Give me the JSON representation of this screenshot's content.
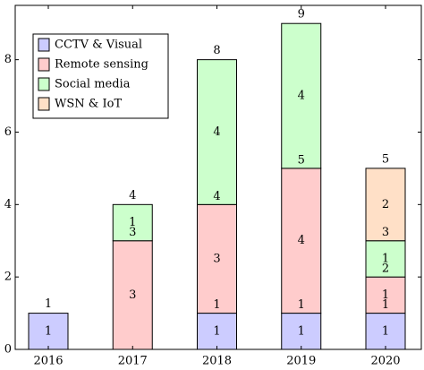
{
  "chart_data": {
    "type": "bar",
    "stacked": true,
    "categories": [
      "2016",
      "2017",
      "2018",
      "2019",
      "2020"
    ],
    "series": [
      {
        "name": "CCTV & Visual",
        "color": "#ccccff",
        "values": [
          1,
          0,
          1,
          1,
          1
        ]
      },
      {
        "name": "Remote sensing",
        "color": "#ffcccc",
        "values": [
          0,
          3,
          3,
          4,
          1
        ]
      },
      {
        "name": "Social media",
        "color": "#ccffcc",
        "values": [
          0,
          1,
          4,
          4,
          1
        ]
      },
      {
        "name": "WSN & IoT",
        "color": "#ffe0c7",
        "values": [
          0,
          0,
          0,
          0,
          2
        ]
      }
    ],
    "segment_labels": [
      [
        "1",
        "",
        "",
        ""
      ],
      [
        "",
        "3",
        "1",
        ""
      ],
      [
        "1",
        "3",
        "4",
        ""
      ],
      [
        "1",
        "4",
        "4",
        ""
      ],
      [
        "1",
        "1",
        "1",
        "2"
      ]
    ],
    "boundary_labels": [
      [],
      [
        "3"
      ],
      [
        "1",
        "4"
      ],
      [
        "1",
        "5"
      ],
      [
        "1",
        "2",
        "3"
      ]
    ],
    "totals": [
      "1",
      "4",
      "8",
      "9",
      "5"
    ],
    "yticks": [
      "0",
      "2",
      "4",
      "6",
      "8"
    ],
    "ylim": [
      0,
      9.5
    ],
    "grid": false,
    "legend_position": "top-left",
    "xlabel": "",
    "ylabel": "",
    "title": ""
  }
}
